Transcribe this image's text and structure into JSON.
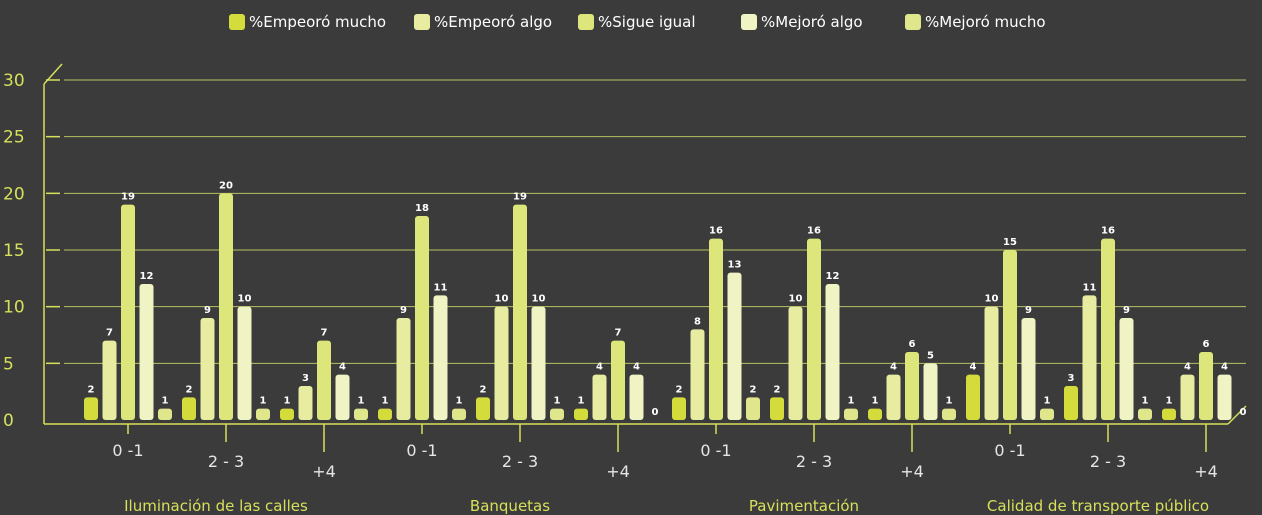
{
  "colors": {
    "background": "#3b3b3b",
    "axis": "#d6e05a",
    "grid": "#cfd86a",
    "series": [
      "#d4dc3c",
      "#e8eca0",
      "#dce67a",
      "#f0f3c4",
      "#e0e68c"
    ]
  },
  "chart_data": {
    "type": "bar",
    "title": "",
    "xlabel": "",
    "ylabel": "",
    "ylim": [
      0,
      30
    ],
    "yticks": [
      0,
      5,
      10,
      15,
      20,
      25,
      30
    ],
    "grid": true,
    "legend_position": "top",
    "groups": [
      "Iluminación de las calles",
      "Banquetas",
      "Pavimentación",
      "Calidad de transporte público"
    ],
    "subcategories": [
      "0 -1",
      "2 - 3",
      "+4"
    ],
    "series": [
      {
        "name": "%Empeoró mucho",
        "values": [
          2,
          2,
          1,
          1,
          2,
          1,
          2,
          2,
          1,
          4,
          3,
          1
        ]
      },
      {
        "name": "%Empeoró algo",
        "values": [
          7,
          9,
          3,
          9,
          10,
          4,
          8,
          10,
          4,
          10,
          11,
          4
        ]
      },
      {
        "name": "%Sigue igual",
        "values": [
          19,
          20,
          7,
          18,
          19,
          7,
          16,
          16,
          6,
          15,
          16,
          6
        ]
      },
      {
        "name": "%Mejoró algo",
        "values": [
          12,
          10,
          4,
          11,
          10,
          4,
          13,
          12,
          5,
          9,
          9,
          4
        ]
      },
      {
        "name": "%Mejoró mucho",
        "values": [
          1,
          1,
          1,
          1,
          1,
          0,
          2,
          1,
          1,
          1,
          1,
          0
        ]
      }
    ]
  }
}
